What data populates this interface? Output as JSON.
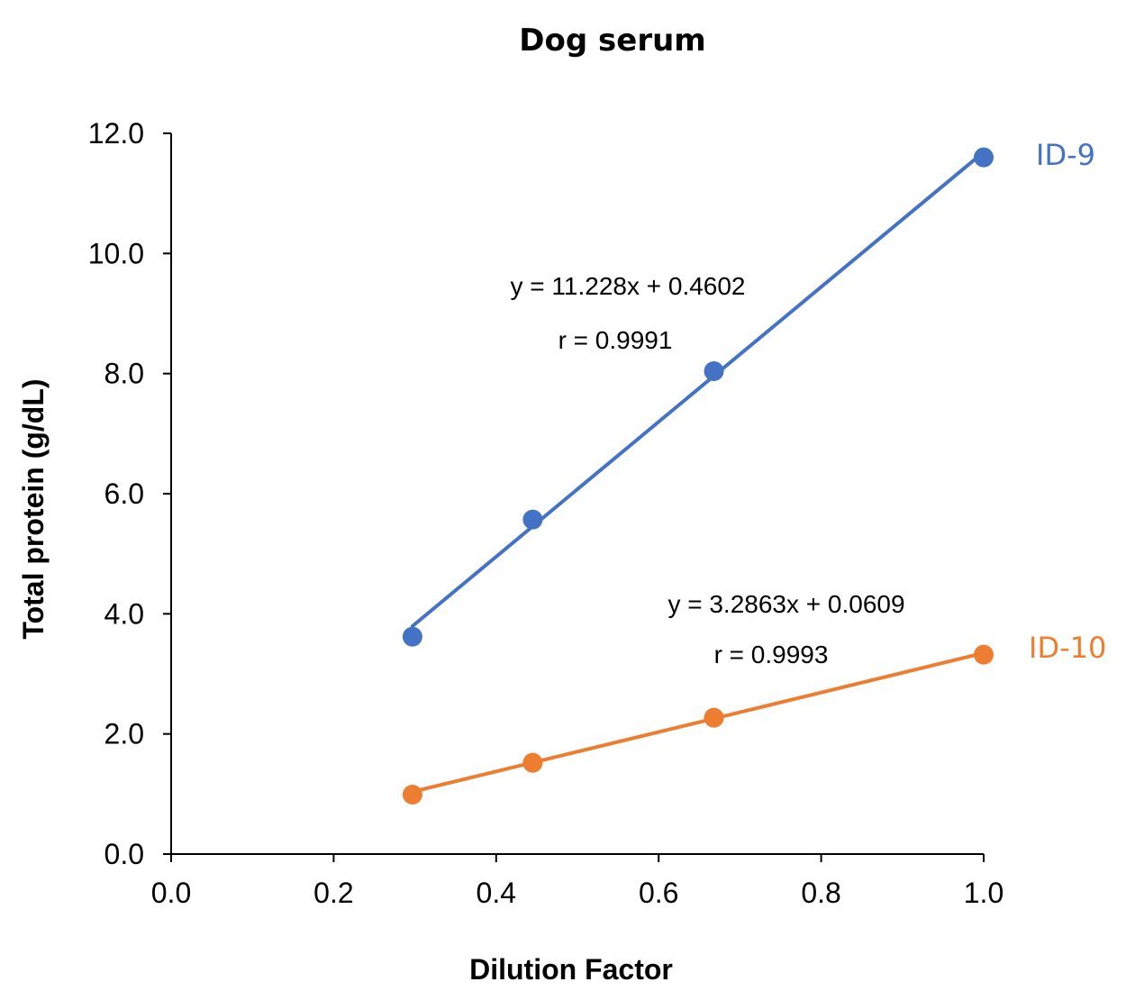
{
  "chart_data": {
    "type": "scatter",
    "title": "Dog serum",
    "xlabel": "Dilution Factor",
    "ylabel": "Total protein (g/dL)",
    "xlim": [
      0,
      1
    ],
    "ylim": [
      0,
      12
    ],
    "x_ticks": [
      "0.0",
      "0.2",
      "0.4",
      "0.6",
      "0.8",
      "1.0"
    ],
    "y_ticks": [
      "0.0",
      "2.0",
      "4.0",
      "6.0",
      "8.0",
      "10.0",
      "12.0"
    ],
    "grid": false,
    "series": [
      {
        "name": "ID-9",
        "color": "#4472C4",
        "x": [
          0.297,
          0.445,
          0.668,
          1.0
        ],
        "y": [
          3.62,
          5.57,
          8.04,
          11.6
        ],
        "trendline": {
          "slope": 11.228,
          "intercept": 0.4602
        },
        "equation": "y = 11.228x + 0.4602",
        "r": "r = 0.9991"
      },
      {
        "name": "ID-10",
        "color": "#ED7D31",
        "x": [
          0.297,
          0.445,
          0.668,
          1.0
        ],
        "y": [
          0.99,
          1.52,
          2.27,
          3.32
        ],
        "trendline": {
          "slope": 3.2863,
          "intercept": 0.0609
        },
        "equation": "y = 3.2863x + 0.0609",
        "r": "r = 0.9993"
      }
    ]
  }
}
